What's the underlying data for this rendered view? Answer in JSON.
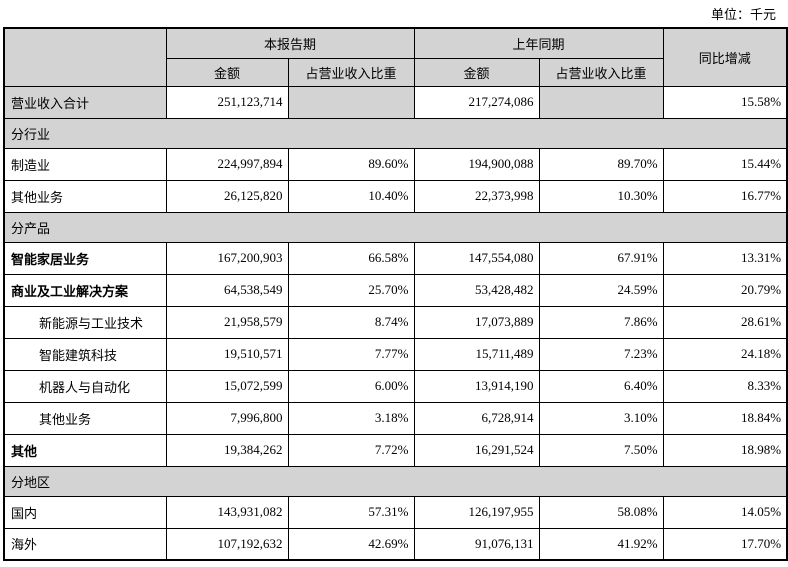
{
  "unit_label": "单位：千元",
  "table": {
    "header": {
      "current_period": "本报告期",
      "prior_period": "上年同期",
      "yoy": "同比增减",
      "amount": "金额",
      "ratio": "占营业收入比重"
    },
    "rows": [
      {
        "type": "data",
        "label": "营业收入合计",
        "amount_cur": "251,123,714",
        "ratio_cur": "",
        "amount_pri": "217,274,086",
        "ratio_pri": "",
        "yoy": "15.58%",
        "highlight": true
      },
      {
        "type": "section",
        "label": "分行业"
      },
      {
        "type": "data",
        "label": "制造业",
        "amount_cur": "224,997,894",
        "ratio_cur": "89.60%",
        "amount_pri": "194,900,088",
        "ratio_pri": "89.70%",
        "yoy": "15.44%"
      },
      {
        "type": "data",
        "label": "其他业务",
        "amount_cur": "26,125,820",
        "ratio_cur": "10.40%",
        "amount_pri": "22,373,998",
        "ratio_pri": "10.30%",
        "yoy": "16.77%"
      },
      {
        "type": "section",
        "label": "分产品"
      },
      {
        "type": "data",
        "label": "智能家居业务",
        "bold": true,
        "amount_cur": "167,200,903",
        "ratio_cur": "66.58%",
        "amount_pri": "147,554,080",
        "ratio_pri": "67.91%",
        "yoy": "13.31%"
      },
      {
        "type": "data",
        "label": "商业及工业解决方案",
        "bold": true,
        "amount_cur": "64,538,549",
        "ratio_cur": "25.70%",
        "amount_pri": "53,428,482",
        "ratio_pri": "24.59%",
        "yoy": "20.79%"
      },
      {
        "type": "data",
        "label": "新能源与工业技术",
        "indent": true,
        "amount_cur": "21,958,579",
        "ratio_cur": "8.74%",
        "amount_pri": "17,073,889",
        "ratio_pri": "7.86%",
        "yoy": "28.61%"
      },
      {
        "type": "data",
        "label": "智能建筑科技",
        "indent": true,
        "amount_cur": "19,510,571",
        "ratio_cur": "7.77%",
        "amount_pri": "15,711,489",
        "ratio_pri": "7.23%",
        "yoy": "24.18%"
      },
      {
        "type": "data",
        "label": "机器人与自动化",
        "indent": true,
        "amount_cur": "15,072,599",
        "ratio_cur": "6.00%",
        "amount_pri": "13,914,190",
        "ratio_pri": "6.40%",
        "yoy": "8.33%"
      },
      {
        "type": "data",
        "label": "其他业务",
        "indent": true,
        "amount_cur": "7,996,800",
        "ratio_cur": "3.18%",
        "amount_pri": "6,728,914",
        "ratio_pri": "3.10%",
        "yoy": "18.84%"
      },
      {
        "type": "data",
        "label": "其他",
        "bold": true,
        "amount_cur": "19,384,262",
        "ratio_cur": "7.72%",
        "amount_pri": "16,291,524",
        "ratio_pri": "7.50%",
        "yoy": "18.98%"
      },
      {
        "type": "section",
        "label": "分地区"
      },
      {
        "type": "data",
        "label": "国内",
        "amount_cur": "143,931,082",
        "ratio_cur": "57.31%",
        "amount_pri": "126,197,955",
        "ratio_pri": "58.08%",
        "yoy": "14.05%"
      },
      {
        "type": "data",
        "label": "海外",
        "amount_cur": "107,192,632",
        "ratio_cur": "42.69%",
        "amount_pri": "91,076,131",
        "ratio_pri": "41.92%",
        "yoy": "17.70%"
      }
    ]
  }
}
